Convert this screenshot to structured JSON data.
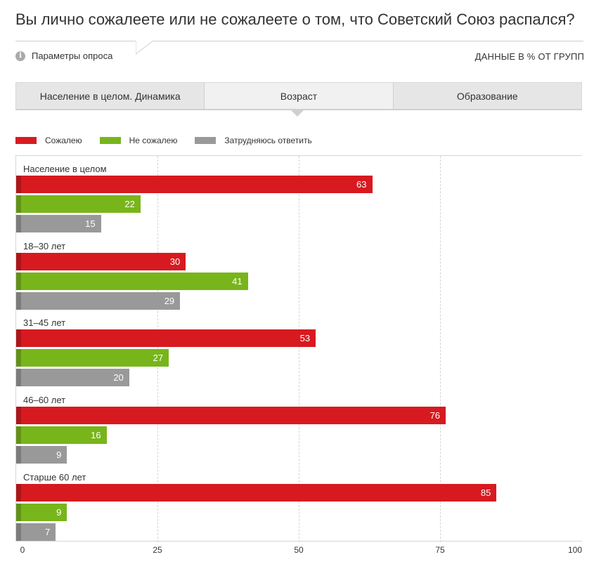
{
  "header": {
    "question": "Вы лично сожалеете или не сожалеете о том, что Советский Союз распался?",
    "params_label": "Параметры опроса",
    "info_icon": "info-icon",
    "data_note": "ДАННЫЕ В % ОТ ГРУПП"
  },
  "tabs": [
    {
      "label": "Население в целом. Динамика",
      "active": false
    },
    {
      "label": "Возраст",
      "active": true
    },
    {
      "label": "Образование",
      "active": false
    }
  ],
  "colors": {
    "regret": "#d71a20",
    "no_regret": "#78b51b",
    "hard_to_say": "#999999"
  },
  "chart_data": {
    "type": "bar",
    "orientation": "horizontal",
    "xlim": [
      0,
      100
    ],
    "ticks": [
      0,
      25,
      50,
      75,
      100
    ],
    "grid": true,
    "legend_position": "top-left",
    "series": [
      {
        "name": "Сожалею",
        "color": "#d71a20",
        "values": [
          63,
          30,
          53,
          76,
          85
        ]
      },
      {
        "name": "Не сожалею",
        "color": "#78b51b",
        "values": [
          22,
          41,
          27,
          16,
          9
        ]
      },
      {
        "name": "Затрудняюсь ответить",
        "color": "#999999",
        "values": [
          15,
          29,
          20,
          9,
          7
        ]
      }
    ],
    "categories": [
      "Население в целом",
      "18–30 лет",
      "31–45 лет",
      "46–60 лет",
      "Старше 60 лет"
    ]
  }
}
